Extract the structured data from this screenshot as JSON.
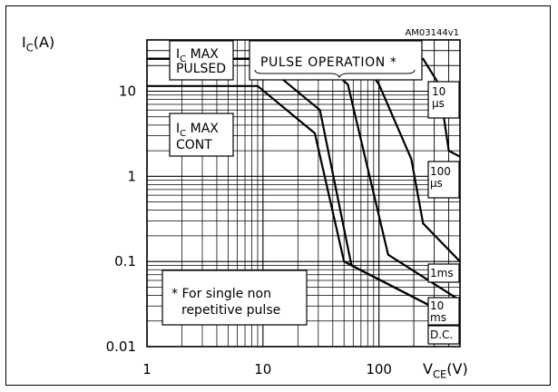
{
  "chart_data": {
    "type": "line",
    "title": "",
    "figure_id": "AM03144v1",
    "ylabel": {
      "main": "I",
      "sub": "C",
      "unit": "(A)"
    },
    "xlabel": {
      "main": "V",
      "sub": "CE",
      "unit": "(V)"
    },
    "xscale": "log",
    "yscale": "log",
    "xlim": [
      1,
      500
    ],
    "ylim": [
      0.01,
      40
    ],
    "grid": true,
    "x_ticks": [
      {
        "value": 1,
        "label": "1"
      },
      {
        "value": 10,
        "label": "10"
      },
      {
        "value": 100,
        "label": "100"
      }
    ],
    "y_ticks": [
      {
        "value": 0.01,
        "label": "0.01"
      },
      {
        "value": 0.1,
        "label": "0.1"
      },
      {
        "value": 1,
        "label": "1"
      },
      {
        "value": 10,
        "label": "10"
      }
    ],
    "labels": {
      "ic_max_pulsed": {
        "main": "I",
        "sub": "C",
        "rest_line1": " MAX",
        "line2": "PULSED"
      },
      "ic_max_cont": {
        "main": "I",
        "sub": "C",
        "rest_line1": " MAX",
        "line2": "CONT"
      },
      "pulse_operation": "PULSE OPERATION *",
      "footnote": [
        "* For single non",
        "repetitive pulse"
      ]
    },
    "series": [
      {
        "name": "10 µs",
        "label_lines": [
          "10",
          "µs"
        ],
        "points": [
          [
            1,
            24
          ],
          [
            240,
            24
          ],
          [
            330,
            12
          ],
          [
            400,
            2
          ],
          [
            500,
            1.7
          ]
        ]
      },
      {
        "name": "100 µs",
        "label_lines": [
          "100",
          "µs"
        ],
        "points": [
          [
            1,
            24
          ],
          [
            70,
            24
          ],
          [
            100,
            12
          ],
          [
            190,
            1.6
          ],
          [
            240,
            0.28
          ],
          [
            500,
            0.1
          ]
        ]
      },
      {
        "name": "1ms",
        "label_lines": [
          "1ms"
        ],
        "points": [
          [
            1,
            24
          ],
          [
            30,
            24
          ],
          [
            54,
            12
          ],
          [
            120,
            0.12
          ],
          [
            500,
            0.035
          ]
        ]
      },
      {
        "name": "10 ms",
        "label_lines": [
          "10",
          "ms"
        ],
        "points": [
          [
            1,
            24
          ],
          [
            9,
            24
          ],
          [
            31,
            6
          ],
          [
            58,
            0.09
          ],
          [
            500,
            0.02
          ]
        ]
      },
      {
        "name": "D.C.",
        "label_lines": [
          "D.C."
        ],
        "points": [
          [
            1,
            11.5
          ],
          [
            9,
            11.5
          ],
          [
            28,
            3.2
          ],
          [
            50,
            0.1
          ],
          [
            500,
            0.02
          ]
        ]
      }
    ]
  }
}
